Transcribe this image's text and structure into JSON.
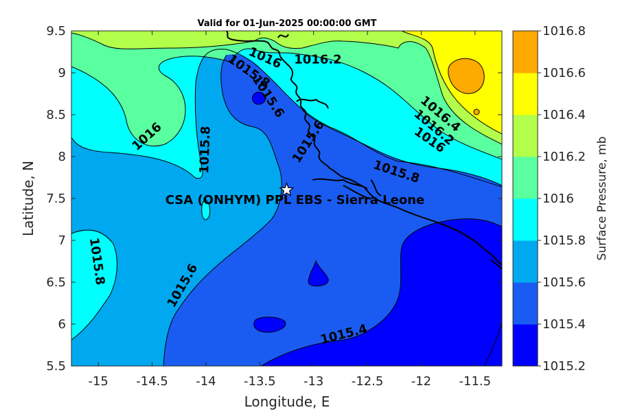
{
  "title": "Valid for 01-Jun-2025 00:00:00 GMT",
  "x_axis": {
    "label": "Longitude, E",
    "range": [
      -15.25,
      -11.25
    ],
    "ticks": [
      {
        "v": -15,
        "t": "-15"
      },
      {
        "v": -14.5,
        "t": "-14.5"
      },
      {
        "v": -14,
        "t": "-14"
      },
      {
        "v": -13.5,
        "t": "-13.5"
      },
      {
        "v": -13,
        "t": "-13"
      },
      {
        "v": -12.5,
        "t": "-12.5"
      },
      {
        "v": -12,
        "t": "-12"
      },
      {
        "v": -11.5,
        "t": "-11.5"
      }
    ]
  },
  "y_axis": {
    "label": "Latitude, N",
    "range": [
      5.5,
      9.5
    ],
    "ticks": [
      {
        "v": 5.5,
        "t": "5.5"
      },
      {
        "v": 6,
        "t": "6"
      },
      {
        "v": 6.5,
        "t": "6.5"
      },
      {
        "v": 7,
        "t": "7"
      },
      {
        "v": 7.5,
        "t": "7.5"
      },
      {
        "v": 8,
        "t": "8"
      },
      {
        "v": 8.5,
        "t": "8.5"
      },
      {
        "v": 9,
        "t": "9"
      },
      {
        "v": 9.5,
        "t": "9.5"
      }
    ]
  },
  "colorbar": {
    "label": "Surface Pressure, mb",
    "levels": [
      "1015.2",
      "1015.4",
      "1015.6",
      "1015.8",
      "1016",
      "1016.2",
      "1016.4",
      "1016.6",
      "1016.8"
    ],
    "colors": [
      "#0000ff",
      "#1a5cf2",
      "#00a8f0",
      "#00ffff",
      "#5affa0",
      "#b2ff4c",
      "#ffff00",
      "#ffaa00",
      "#ff5500"
    ]
  },
  "site": {
    "name": "CSA (ONHYM) PPL EBS  - Sierra Leone",
    "lon": -13.25,
    "lat": 7.6
  },
  "contour_labels": [
    {
      "text": "1016",
      "lon": -13.45,
      "lat": 9.18,
      "rot": 24
    },
    {
      "text": "1016.2",
      "lon": -12.96,
      "lat": 9.16,
      "rot": 0
    },
    {
      "text": "1015.8",
      "lon": -13.6,
      "lat": 9.02,
      "rot": 35
    },
    {
      "text": "1015.6",
      "lon": -13.42,
      "lat": 8.72,
      "rot": 57
    },
    {
      "text": "1015.6",
      "lon": -13.05,
      "lat": 8.18,
      "rot": -57
    },
    {
      "text": "1016",
      "lon": -14.55,
      "lat": 8.24,
      "rot": -42
    },
    {
      "text": "1015.8",
      "lon": -14.01,
      "lat": 8.08,
      "rot": -88
    },
    {
      "text": "1016.4",
      "lon": -11.82,
      "lat": 8.51,
      "rot": 40
    },
    {
      "text": "1016.2",
      "lon": -11.88,
      "lat": 8.35,
      "rot": 40
    },
    {
      "text": "1016",
      "lon": -11.92,
      "lat": 8.2,
      "rot": 35
    },
    {
      "text": "1015.8",
      "lon": -12.23,
      "lat": 7.82,
      "rot": 18
    },
    {
      "text": "1015.8",
      "lon": -15.01,
      "lat": 6.75,
      "rot": 82
    },
    {
      "text": "1015.6",
      "lon": -14.22,
      "lat": 6.46,
      "rot": -60
    },
    {
      "text": "1015.4",
      "lon": -12.72,
      "lat": 5.88,
      "rot": -14
    }
  ]
}
